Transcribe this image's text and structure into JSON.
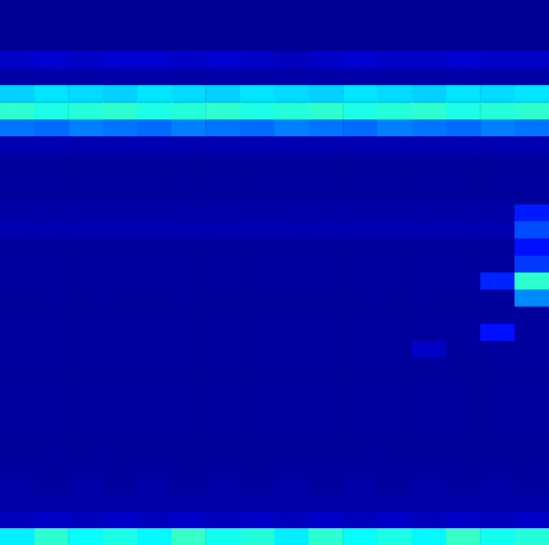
{
  "chart_data": {
    "type": "heatmap",
    "tick_labels": false,
    "grid": false,
    "zlim": [
      0,
      1
    ],
    "cells": [
      [
        0.02,
        0.02,
        0.02,
        0.02,
        0.02,
        0.02,
        0.02,
        0.02,
        0.02,
        0.02,
        0.02,
        0.02,
        0.02,
        0.02,
        0.02,
        0.02
      ],
      [
        0.02,
        0.02,
        0.02,
        0.02,
        0.02,
        0.02,
        0.02,
        0.02,
        0.02,
        0.02,
        0.02,
        0.02,
        0.02,
        0.02,
        0.02,
        0.02
      ],
      [
        0.02,
        0.02,
        0.02,
        0.02,
        0.02,
        0.02,
        0.02,
        0.02,
        0.02,
        0.02,
        0.02,
        0.02,
        0.02,
        0.02,
        0.02,
        0.02
      ],
      [
        0.07,
        0.08,
        0.07,
        0.08,
        0.08,
        0.07,
        0.08,
        0.07,
        0.06,
        0.07,
        0.08,
        0.07,
        0.07,
        0.08,
        0.07,
        0.07
      ],
      [
        0.04,
        0.04,
        0.04,
        0.04,
        0.04,
        0.04,
        0.04,
        0.04,
        0.04,
        0.04,
        0.04,
        0.04,
        0.04,
        0.04,
        0.04,
        0.04
      ],
      [
        0.33,
        0.35,
        0.34,
        0.33,
        0.35,
        0.34,
        0.33,
        0.35,
        0.34,
        0.33,
        0.35,
        0.34,
        0.33,
        0.35,
        0.34,
        0.35
      ],
      [
        0.42,
        0.4,
        0.41,
        0.42,
        0.4,
        0.41,
        0.42,
        0.4,
        0.41,
        0.42,
        0.4,
        0.41,
        0.42,
        0.4,
        0.41,
        0.42
      ],
      [
        0.24,
        0.23,
        0.25,
        0.24,
        0.23,
        0.25,
        0.24,
        0.23,
        0.25,
        0.24,
        0.23,
        0.25,
        0.24,
        0.23,
        0.25,
        0.24
      ],
      [
        0.05,
        0.05,
        0.05,
        0.05,
        0.05,
        0.05,
        0.05,
        0.05,
        0.05,
        0.05,
        0.05,
        0.05,
        0.05,
        0.05,
        0.05,
        0.05
      ],
      [
        0.03,
        0.03,
        0.03,
        0.03,
        0.03,
        0.03,
        0.03,
        0.03,
        0.03,
        0.03,
        0.03,
        0.03,
        0.03,
        0.03,
        0.03,
        0.03
      ],
      [
        0.03,
        0.03,
        0.03,
        0.03,
        0.03,
        0.03,
        0.03,
        0.03,
        0.03,
        0.03,
        0.03,
        0.03,
        0.03,
        0.03,
        0.03,
        0.03
      ],
      [
        0.03,
        0.03,
        0.03,
        0.03,
        0.03,
        0.03,
        0.03,
        0.03,
        0.03,
        0.03,
        0.03,
        0.03,
        0.03,
        0.03,
        0.03,
        0.03
      ],
      [
        0.04,
        0.04,
        0.04,
        0.04,
        0.04,
        0.04,
        0.04,
        0.04,
        0.04,
        0.04,
        0.04,
        0.04,
        0.04,
        0.04,
        0.04,
        0.15
      ],
      [
        0.05,
        0.05,
        0.05,
        0.05,
        0.05,
        0.05,
        0.05,
        0.05,
        0.05,
        0.05,
        0.05,
        0.05,
        0.05,
        0.05,
        0.05,
        0.2
      ],
      [
        0.03,
        0.03,
        0.03,
        0.03,
        0.03,
        0.03,
        0.03,
        0.03,
        0.03,
        0.03,
        0.03,
        0.03,
        0.03,
        0.03,
        0.03,
        0.14
      ],
      [
        0.03,
        0.03,
        0.03,
        0.03,
        0.03,
        0.03,
        0.03,
        0.03,
        0.03,
        0.03,
        0.03,
        0.03,
        0.03,
        0.03,
        0.03,
        0.18
      ],
      [
        0.03,
        0.03,
        0.03,
        0.03,
        0.03,
        0.03,
        0.03,
        0.03,
        0.03,
        0.03,
        0.03,
        0.03,
        0.03,
        0.03,
        0.16,
        0.42
      ],
      [
        0.03,
        0.03,
        0.03,
        0.03,
        0.03,
        0.03,
        0.03,
        0.03,
        0.03,
        0.03,
        0.03,
        0.03,
        0.03,
        0.03,
        0.03,
        0.26
      ],
      [
        0.03,
        0.03,
        0.03,
        0.03,
        0.03,
        0.03,
        0.03,
        0.03,
        0.03,
        0.03,
        0.03,
        0.03,
        0.03,
        0.03,
        0.03,
        0.03
      ],
      [
        0.03,
        0.03,
        0.03,
        0.03,
        0.03,
        0.03,
        0.03,
        0.03,
        0.03,
        0.03,
        0.03,
        0.03,
        0.03,
        0.03,
        0.14,
        0.03
      ],
      [
        0.03,
        0.03,
        0.03,
        0.03,
        0.03,
        0.03,
        0.03,
        0.03,
        0.03,
        0.03,
        0.03,
        0.03,
        0.07,
        0.03,
        0.03,
        0.03
      ],
      [
        0.03,
        0.03,
        0.03,
        0.03,
        0.03,
        0.03,
        0.03,
        0.03,
        0.03,
        0.03,
        0.03,
        0.03,
        0.03,
        0.03,
        0.03,
        0.03
      ],
      [
        0.03,
        0.03,
        0.03,
        0.03,
        0.03,
        0.03,
        0.03,
        0.03,
        0.03,
        0.03,
        0.03,
        0.03,
        0.03,
        0.03,
        0.03,
        0.03
      ],
      [
        0.03,
        0.03,
        0.03,
        0.03,
        0.03,
        0.03,
        0.03,
        0.03,
        0.03,
        0.03,
        0.03,
        0.03,
        0.03,
        0.03,
        0.03,
        0.03
      ],
      [
        0.03,
        0.03,
        0.03,
        0.03,
        0.03,
        0.03,
        0.03,
        0.03,
        0.03,
        0.03,
        0.03,
        0.03,
        0.03,
        0.03,
        0.03,
        0.03
      ],
      [
        0.03,
        0.03,
        0.03,
        0.03,
        0.03,
        0.03,
        0.03,
        0.03,
        0.03,
        0.03,
        0.03,
        0.03,
        0.03,
        0.03,
        0.03,
        0.03
      ],
      [
        0.03,
        0.03,
        0.03,
        0.03,
        0.03,
        0.03,
        0.03,
        0.03,
        0.03,
        0.03,
        0.03,
        0.03,
        0.03,
        0.03,
        0.03,
        0.03
      ],
      [
        0.03,
        0.03,
        0.03,
        0.03,
        0.03,
        0.03,
        0.03,
        0.03,
        0.03,
        0.03,
        0.03,
        0.03,
        0.03,
        0.03,
        0.03,
        0.03
      ],
      [
        0.04,
        0.03,
        0.04,
        0.03,
        0.04,
        0.03,
        0.04,
        0.03,
        0.04,
        0.03,
        0.04,
        0.03,
        0.04,
        0.03,
        0.04,
        0.03
      ],
      [
        0.04,
        0.04,
        0.04,
        0.04,
        0.04,
        0.04,
        0.04,
        0.04,
        0.04,
        0.04,
        0.04,
        0.04,
        0.04,
        0.04,
        0.04,
        0.04
      ],
      [
        0.06,
        0.07,
        0.06,
        0.07,
        0.06,
        0.07,
        0.06,
        0.07,
        0.06,
        0.07,
        0.06,
        0.07,
        0.06,
        0.07,
        0.06,
        0.07
      ],
      [
        0.36,
        0.42,
        0.38,
        0.4,
        0.37,
        0.43,
        0.39,
        0.41,
        0.36,
        0.42,
        0.38,
        0.4,
        0.37,
        0.43,
        0.39,
        0.41
      ]
    ]
  }
}
